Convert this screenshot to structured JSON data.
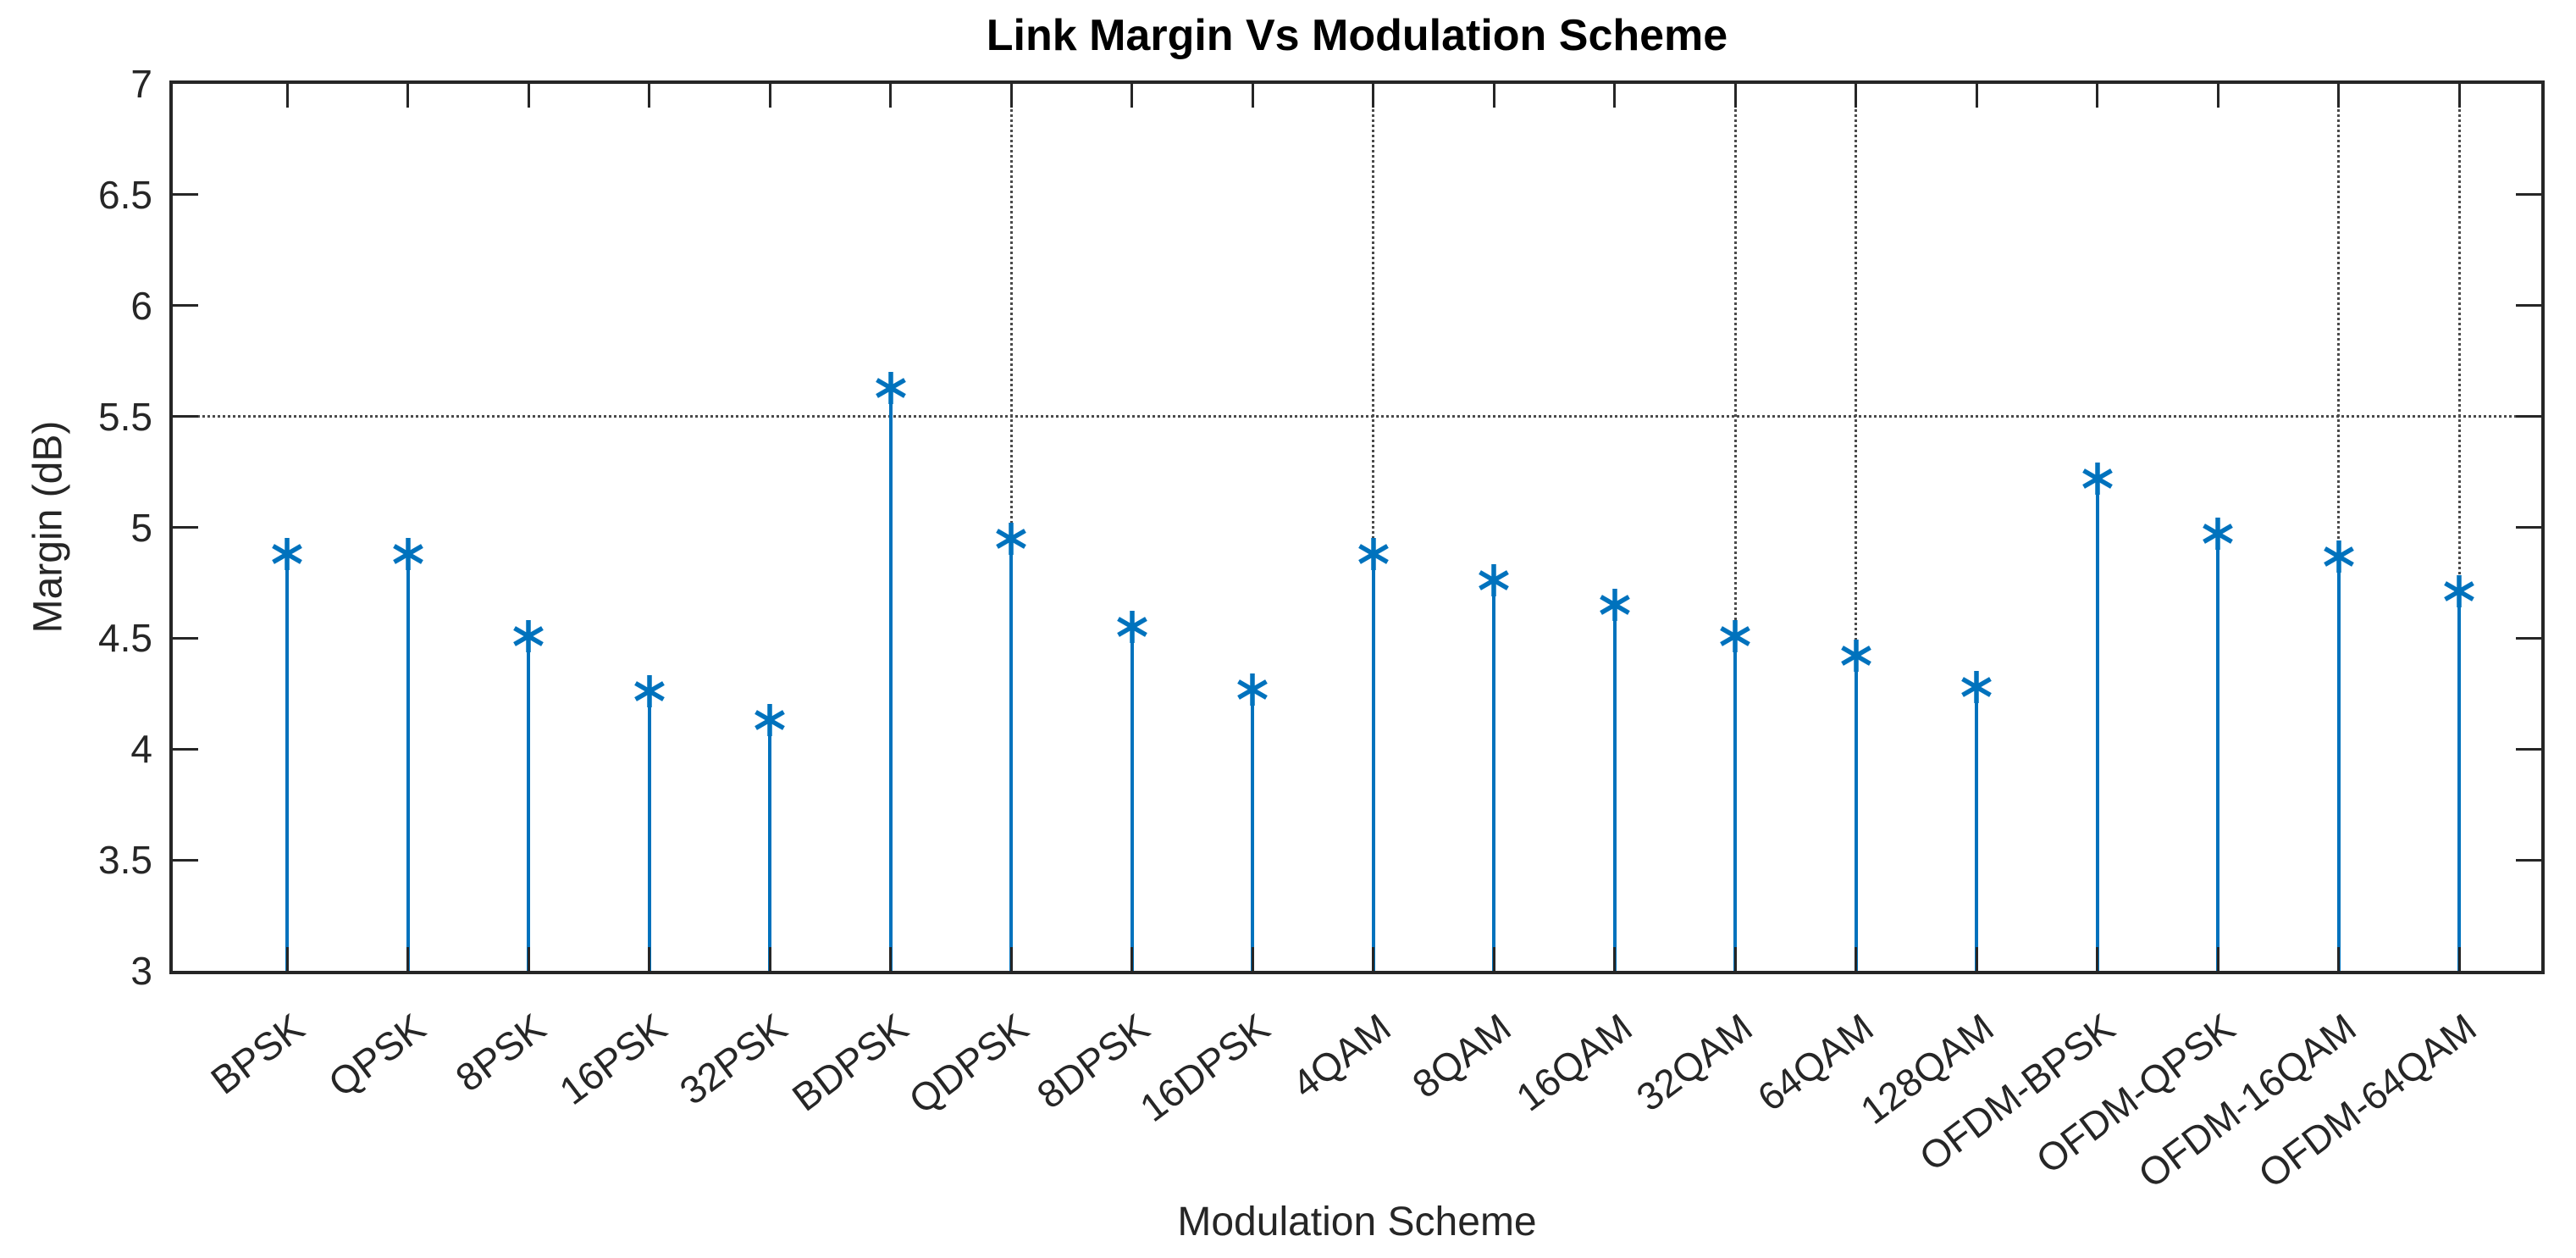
{
  "title": "Link Margin Vs Modulation Scheme",
  "axes": {
    "x_label": "Modulation Scheme",
    "y_label": "Margin (dB)",
    "y_tick_labels": [
      "7",
      "6.5",
      "6",
      "5.5",
      "5",
      "4.5",
      "4",
      "3.5",
      "3"
    ],
    "y_tick_values": [
      7,
      6.5,
      6,
      5.5,
      5,
      4.5,
      4,
      3.5,
      3
    ]
  },
  "chart_data": {
    "type": "stem",
    "title": "Link Margin Vs Modulation Scheme",
    "xlabel": "Modulation Scheme",
    "ylabel": "Margin (dB)",
    "ylim": [
      3,
      7
    ],
    "y_tick_step": 0.5,
    "categories": [
      "BPSK",
      "QPSK",
      "8PSK",
      "16PSK",
      "32PSK",
      "BDPSK",
      "QDPSK",
      "8DPSK",
      "16DPSK",
      "4QAM",
      "8QAM",
      "16QAM",
      "32QAM",
      "64QAM",
      "128QAM",
      "OFDM-BPSK",
      "OFDM-QPSK",
      "OFDM-16QAM",
      "OFDM-64QAM"
    ],
    "values": [
      4.88,
      4.88,
      4.51,
      4.26,
      4.13,
      5.63,
      4.95,
      4.55,
      4.27,
      4.88,
      4.76,
      4.65,
      4.51,
      4.42,
      4.28,
      5.22,
      4.97,
      4.87,
      4.71
    ],
    "marker": "asterisk",
    "legend": "none",
    "grid": "partial-dotted",
    "horizontal_gridline_y": 5.5,
    "vertical_gridline_categories": [
      "QDPSK",
      "4QAM",
      "32QAM",
      "64QAM",
      "OFDM-16QAM",
      "OFDM-64QAM"
    ],
    "colors": {
      "stem": "#0072BD",
      "grid": "#4a4a4a",
      "axis": "#262626",
      "tick_label": "#262626",
      "title": "#000000"
    }
  }
}
